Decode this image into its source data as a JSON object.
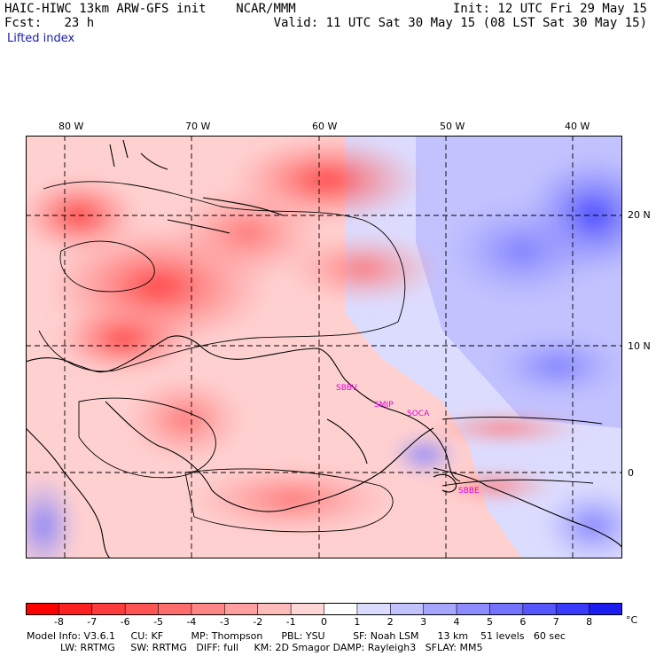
{
  "header": {
    "model": "HAIC-HIWC 13km ARW-GFS init",
    "org": "NCAR/MMM",
    "fcst_label": "Fcst:",
    "fcst_value": "23 h",
    "init": "Init: 12 UTC Fri 29 May 15",
    "valid": "Valid: 11 UTC Sat 30 May 15 (08 LST Sat 30 May 15)",
    "field": "Lifted index"
  },
  "map": {
    "lon_labels": [
      "80 W",
      "70 W",
      "60 W",
      "50 W",
      "40 W"
    ],
    "lat_labels": [
      "20 N",
      "10 N",
      "0"
    ],
    "stations": [
      "SBBV",
      "SMJP",
      "SOCA",
      "SBBE"
    ],
    "station_color": "#e000e0"
  },
  "colorbar": {
    "labels": [
      "-8",
      "-7",
      "-6",
      "-5",
      "-4",
      "-3",
      "-2",
      "-1",
      "0",
      "1",
      "2",
      "3",
      "4",
      "5",
      "6",
      "7",
      "8"
    ],
    "unit": "°C",
    "colors": [
      "#ff0000",
      "#ff2020",
      "#ff3c3c",
      "#ff5454",
      "#ff6c6c",
      "#ff8686",
      "#ffa0a0",
      "#ffbaba",
      "#ffd6d6",
      "#ffffff",
      "#dcdcff",
      "#c2c2ff",
      "#a6a6ff",
      "#8c8cff",
      "#7272ff",
      "#5656ff",
      "#3a3aff",
      "#1c1cf0"
    ]
  },
  "model_info": {
    "line1": "Model Info: V3.6.1     CU: KF         MP: Thompson      PBL: YSU         SF: Noah LSM      13 km    51 levels   60 sec",
    "line2": "LW: RRTMG     SW: RRTMG   DIFF: full     KM: 2D Smagor DAMP: Rayleigh3   SFLAY: MM5"
  }
}
